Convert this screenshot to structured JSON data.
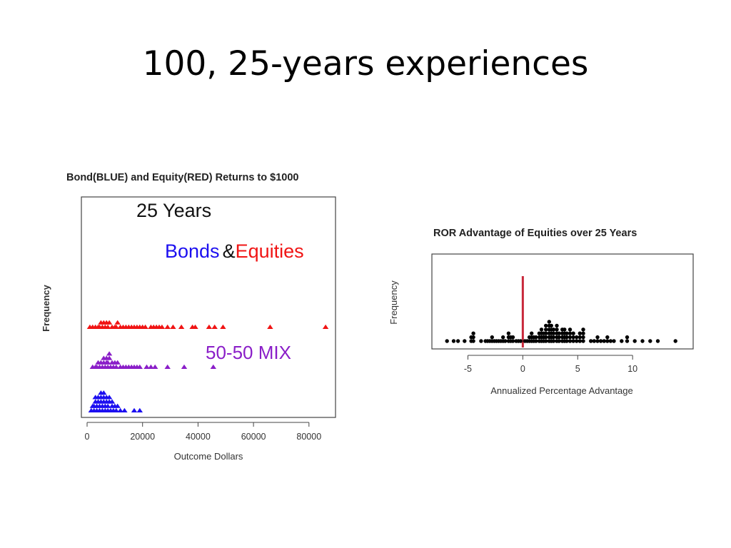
{
  "slide": {
    "title": "100, 25-years experiences"
  },
  "chart_data": [
    {
      "type": "scatter",
      "title": "Bond(BLUE) and Equity(RED) Returns to $1000",
      "xlabel": "Outcome Dollars",
      "ylabel": "Frequency",
      "xlim": [
        0,
        87000
      ],
      "xticks": [
        "0",
        "20000",
        "40000",
        "60000",
        "80000"
      ],
      "annotations": {
        "years": "25 Years",
        "bonds": "Bonds",
        "amp": "&",
        "equities": "Equities",
        "mix": "50-50 MIX"
      },
      "colors": {
        "bonds": "#1c0ff0",
        "mix": "#8a1ec8",
        "equities": "#f01414"
      },
      "series": [
        {
          "name": "Bonds",
          "color": "#1c0ff0",
          "row": 0,
          "x": [
            1500,
            2000,
            2500,
            2500,
            3000,
            3000,
            3500,
            3500,
            4000,
            4000,
            4500,
            4500,
            5000,
            5000,
            5000,
            5500,
            5500,
            6000,
            6000,
            6000,
            6500,
            6500,
            7000,
            7000,
            7500,
            7500,
            8000,
            8000,
            8500,
            9000,
            9000,
            9500,
            10000,
            10500,
            11000,
            12000,
            13500,
            17000,
            19000
          ]
        },
        {
          "name": "50-50 MIX",
          "color": "#8a1ec8",
          "row": 1,
          "x": [
            2000,
            3000,
            3500,
            4000,
            4500,
            5000,
            5500,
            6000,
            6000,
            6500,
            7000,
            7000,
            7500,
            7500,
            8000,
            8000,
            8500,
            9000,
            9500,
            10000,
            10500,
            11000,
            12000,
            13000,
            14000,
            15000,
            16000,
            17000,
            18000,
            19000,
            21500,
            23000,
            24500,
            29000,
            35000,
            45500
          ]
        },
        {
          "name": "Equities",
          "color": "#f01414",
          "row": 2,
          "x": [
            1000,
            2000,
            3000,
            4000,
            4500,
            5000,
            5500,
            6000,
            6500,
            7000,
            7500,
            8000,
            9000,
            10000,
            10500,
            11000,
            12000,
            13000,
            14000,
            15000,
            16000,
            17000,
            18000,
            19000,
            20000,
            21000,
            23000,
            24000,
            25000,
            26000,
            27000,
            29000,
            31000,
            34000,
            38000,
            39000,
            44000,
            46000,
            49000,
            66000,
            86000
          ]
        }
      ]
    },
    {
      "type": "scatter",
      "title": "ROR Advantage of Equities over 25 Years",
      "xlabel": "Annualized Percentage Advantage",
      "ylabel": "Frequency",
      "xlim": [
        -7.5,
        14.8
      ],
      "xticks": [
        -5,
        0,
        5,
        10
      ],
      "reference_line": {
        "x": 0,
        "color": "#c8283a"
      },
      "points": [
        [
          -6.9,
          1
        ],
        [
          -6.3,
          1
        ],
        [
          -5.9,
          1
        ],
        [
          -5.3,
          1
        ],
        [
          -4.7,
          1
        ],
        [
          -4.7,
          2
        ],
        [
          -4.5,
          1
        ],
        [
          -4.5,
          2
        ],
        [
          -4.5,
          3
        ],
        [
          -3.8,
          1
        ],
        [
          -3.4,
          1
        ],
        [
          -3.2,
          1
        ],
        [
          -3.0,
          1
        ],
        [
          -2.8,
          1
        ],
        [
          -2.8,
          2
        ],
        [
          -2.6,
          1
        ],
        [
          -2.4,
          1
        ],
        [
          -2.2,
          1
        ],
        [
          -2.0,
          1
        ],
        [
          -1.8,
          1
        ],
        [
          -1.8,
          2
        ],
        [
          -1.6,
          1
        ],
        [
          -1.3,
          1
        ],
        [
          -1.3,
          2
        ],
        [
          -1.3,
          3
        ],
        [
          -1.1,
          1
        ],
        [
          -1.1,
          2
        ],
        [
          -0.9,
          1
        ],
        [
          -0.9,
          2
        ],
        [
          -0.6,
          1
        ],
        [
          -0.4,
          1
        ],
        [
          -0.2,
          1
        ],
        [
          0.2,
          1
        ],
        [
          0.4,
          1
        ],
        [
          0.6,
          1
        ],
        [
          0.6,
          2
        ],
        [
          0.8,
          1
        ],
        [
          0.8,
          2
        ],
        [
          0.8,
          3
        ],
        [
          1.0,
          1
        ],
        [
          1.0,
          2
        ],
        [
          1.2,
          1
        ],
        [
          1.2,
          2
        ],
        [
          1.5,
          1
        ],
        [
          1.5,
          2
        ],
        [
          1.5,
          3
        ],
        [
          1.7,
          1
        ],
        [
          1.7,
          2
        ],
        [
          1.7,
          3
        ],
        [
          1.7,
          4
        ],
        [
          1.9,
          1
        ],
        [
          1.9,
          2
        ],
        [
          1.9,
          3
        ],
        [
          2.1,
          1
        ],
        [
          2.1,
          2
        ],
        [
          2.1,
          3
        ],
        [
          2.1,
          4
        ],
        [
          2.1,
          5
        ],
        [
          2.4,
          1
        ],
        [
          2.4,
          2
        ],
        [
          2.4,
          3
        ],
        [
          2.4,
          4
        ],
        [
          2.4,
          5
        ],
        [
          2.4,
          6
        ],
        [
          2.6,
          1
        ],
        [
          2.6,
          2
        ],
        [
          2.6,
          3
        ],
        [
          2.6,
          4
        ],
        [
          2.6,
          5
        ],
        [
          2.8,
          1
        ],
        [
          2.8,
          2
        ],
        [
          2.8,
          3
        ],
        [
          2.8,
          4
        ],
        [
          3.1,
          1
        ],
        [
          3.1,
          2
        ],
        [
          3.1,
          3
        ],
        [
          3.1,
          4
        ],
        [
          3.1,
          5
        ],
        [
          3.3,
          1
        ],
        [
          3.3,
          2
        ],
        [
          3.3,
          3
        ],
        [
          3.6,
          1
        ],
        [
          3.6,
          2
        ],
        [
          3.6,
          3
        ],
        [
          3.6,
          4
        ],
        [
          3.8,
          1
        ],
        [
          3.8,
          2
        ],
        [
          3.8,
          3
        ],
        [
          3.8,
          4
        ],
        [
          4.0,
          1
        ],
        [
          4.0,
          2
        ],
        [
          4.0,
          3
        ],
        [
          4.3,
          1
        ],
        [
          4.3,
          2
        ],
        [
          4.3,
          3
        ],
        [
          4.3,
          4
        ],
        [
          4.6,
          1
        ],
        [
          4.6,
          2
        ],
        [
          4.6,
          3
        ],
        [
          4.9,
          1
        ],
        [
          4.9,
          2
        ],
        [
          5.2,
          1
        ],
        [
          5.2,
          2
        ],
        [
          5.2,
          3
        ],
        [
          5.5,
          1
        ],
        [
          5.5,
          2
        ],
        [
          5.5,
          3
        ],
        [
          5.5,
          4
        ],
        [
          6.2,
          1
        ],
        [
          6.5,
          1
        ],
        [
          6.8,
          1
        ],
        [
          6.8,
          2
        ],
        [
          7.1,
          1
        ],
        [
          7.4,
          1
        ],
        [
          7.7,
          1
        ],
        [
          7.7,
          2
        ],
        [
          8.0,
          1
        ],
        [
          8.3,
          1
        ],
        [
          9.0,
          1
        ],
        [
          9.5,
          1
        ],
        [
          9.5,
          2
        ],
        [
          10.2,
          1
        ],
        [
          10.9,
          1
        ],
        [
          11.6,
          1
        ],
        [
          12.3,
          1
        ],
        [
          13.9,
          1
        ]
      ]
    }
  ]
}
